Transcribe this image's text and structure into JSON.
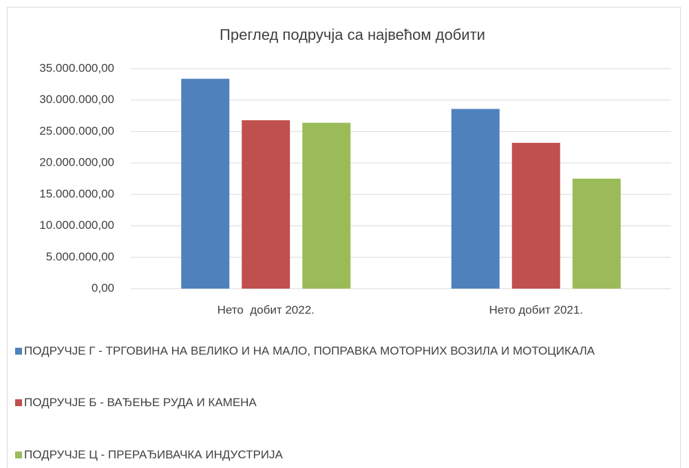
{
  "chart_data": {
    "type": "bar",
    "title": "Преглед подручја са највећом добити",
    "categories": [
      "Нето  добит 2022.",
      "Нето добит 2021."
    ],
    "series": [
      {
        "name": "ПОДРУЧЈЕ Г - ТРГОВИНА НА ВЕЛИКО И НА МАЛО, ПОПРАВКА МОТОРНИХ ВОЗИЛА И МОТОЦИКАЛА",
        "color": "#4f81bd",
        "values": [
          33400000,
          28600000
        ]
      },
      {
        "name": "ПОДРУЧЈЕ Б - ВАЂЕЊЕ РУДА И КАМЕНА",
        "color": "#c0504d",
        "values": [
          26800000,
          23200000
        ]
      },
      {
        "name": "ПОДРУЧЈЕ Ц - ПРЕРАЂИВАЧКА ИНДУСТРИЈА",
        "color": "#9bbb59",
        "values": [
          26400000,
          17500000
        ]
      }
    ],
    "ylim": [
      0,
      35000000
    ],
    "yticks": [
      {
        "value": 0,
        "label": "0,00"
      },
      {
        "value": 5000000,
        "label": "5.000.000,00"
      },
      {
        "value": 10000000,
        "label": "10.000.000,00"
      },
      {
        "value": 15000000,
        "label": "15.000.000,00"
      },
      {
        "value": 20000000,
        "label": "20.000.000,00"
      },
      {
        "value": 25000000,
        "label": "25.000.000,00"
      },
      {
        "value": 30000000,
        "label": "30.000.000,00"
      },
      {
        "value": 35000000,
        "label": "35.000.000,00"
      }
    ],
    "grid": true,
    "legend": "bottom"
  }
}
